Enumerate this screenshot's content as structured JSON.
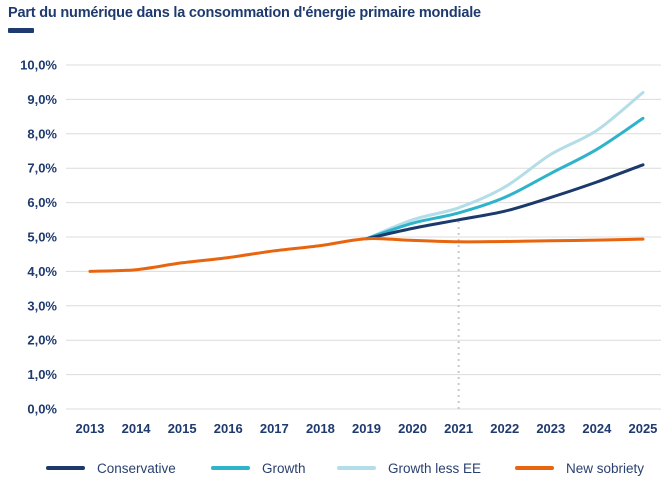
{
  "title": "Part du numérique dans la consommation d'énergie primaire mondiale",
  "colors": {
    "title_text": "#1e3a6e",
    "axis_text": "#1e3a6e",
    "legend_text": "#2a4070",
    "grid_line": "#dcdcdc",
    "annotation_line": "#c9c9c9",
    "series": {
      "conservative": "#1b3a6b",
      "growth": "#2eb3cb",
      "growth_less_ee": "#b3dde8",
      "new_sobriety": "#e8650f"
    }
  },
  "chart_data": {
    "type": "line",
    "title": "Part du numérique dans la consommation d'énergie primaire mondiale",
    "x": [
      2013,
      2014,
      2015,
      2016,
      2017,
      2018,
      2019,
      2020,
      2021,
      2022,
      2023,
      2024,
      2025
    ],
    "x_tick_labels": [
      "2013",
      "2014",
      "2015",
      "2016",
      "2017",
      "2018",
      "2019",
      "2020",
      "2021",
      "2022",
      "2023",
      "2024",
      "2025"
    ],
    "y_tick_labels": [
      "0,0%",
      "1,0%",
      "2,0%",
      "3,0%",
      "4,0%",
      "5,0%",
      "6,0%",
      "7,0%",
      "8,0%",
      "9,0%",
      "10,0%"
    ],
    "ylim": [
      0,
      10
    ],
    "ytick_step": 1,
    "unit": "percent",
    "grid": true,
    "annotation": {
      "x": 2021,
      "y_from": 0,
      "y_to": 5.45,
      "style": "dashed"
    },
    "series": [
      {
        "name": "Growth less EE",
        "color_key": "growth_less_ee",
        "values": [
          null,
          null,
          null,
          null,
          null,
          null,
          4.95,
          5.5,
          5.85,
          6.45,
          7.4,
          8.1,
          9.2
        ]
      },
      {
        "name": "Growth",
        "color_key": "growth",
        "values": [
          null,
          null,
          null,
          null,
          null,
          null,
          4.95,
          5.4,
          5.7,
          6.15,
          6.85,
          7.55,
          8.45
        ]
      },
      {
        "name": "Conservative",
        "color_key": "conservative",
        "values": [
          null,
          null,
          null,
          null,
          null,
          null,
          4.95,
          5.25,
          5.5,
          5.75,
          6.15,
          6.6,
          7.1
        ]
      },
      {
        "name": "New sobriety",
        "color_key": "new_sobriety",
        "values": [
          4.0,
          4.05,
          4.25,
          4.4,
          4.6,
          4.75,
          4.95,
          4.9,
          4.86,
          4.87,
          4.89,
          4.91,
          4.94
        ]
      }
    ],
    "legend_position": "bottom",
    "legend": [
      {
        "label": "Conservative",
        "color_key": "conservative"
      },
      {
        "label": "Growth",
        "color_key": "growth"
      },
      {
        "label": "Growth less EE",
        "color_key": "growth_less_ee"
      },
      {
        "label": "New sobriety",
        "color_key": "new_sobriety"
      }
    ]
  }
}
